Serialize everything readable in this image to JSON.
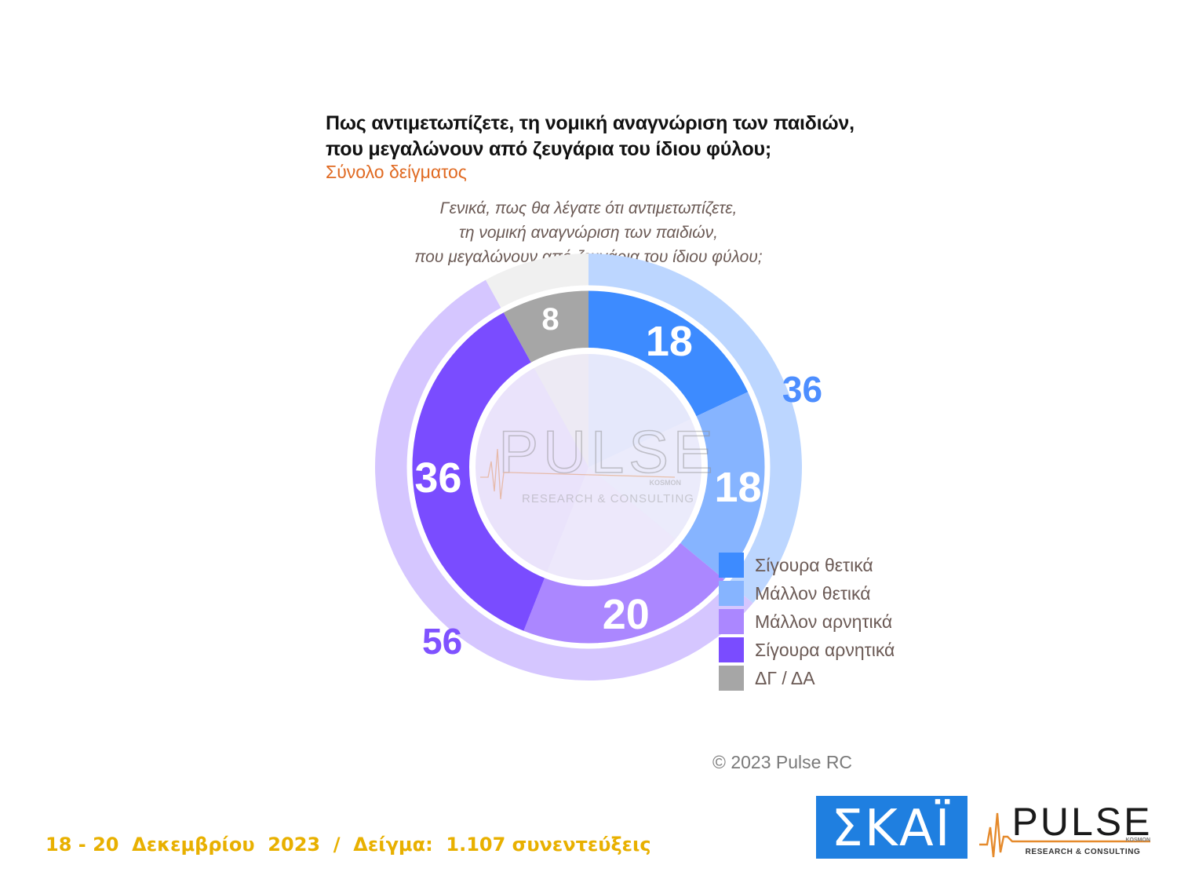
{
  "title_lines": [
    "Πως αντιμετωπίζετε, τη νομική αναγνώριση των παιδιών,",
    "που μεγαλώνουν από ζευγάρια του ίδιου φύλου;"
  ],
  "subtitle": "Σύνολο δείγματος",
  "question_lines": [
    "Γενικά, πως θα λέγατε ότι αντιμετωπίζετε,",
    "τη νομική αναγνώριση των παιδιών,",
    "που μεγαλώνουν από ζευγάρια του ίδιου φύλου;"
  ],
  "chart_data": {
    "type": "pie",
    "subtype": "donut",
    "categories": [
      "Σίγουρα θετικά",
      "Μάλλον θετικά",
      "Μάλλον αρνητικά",
      "Σίγουρα αρνητικά",
      "ΔΓ / ΔΑ"
    ],
    "values": [
      18,
      18,
      20,
      36,
      8
    ],
    "colors": [
      "#3d8bff",
      "#86b4ff",
      "#ab87ff",
      "#7a4cff",
      "#a6a6a6"
    ],
    "outer_ring": {
      "groups": [
        {
          "value": 36,
          "color": "#bcd6ff",
          "label_color": "#4d8eff"
        },
        {
          "value": 56,
          "color": "#d5c6ff",
          "label_color": "#7f52ff"
        },
        {
          "value": 8,
          "color": "#f0f0f0"
        }
      ]
    },
    "legend_position": "bottom-right"
  },
  "watermark": {
    "name": "PULSE",
    "sub": "KOSMON",
    "tagline": "RESEARCH & CONSULTING"
  },
  "copyright": "© 2023 Pulse RC",
  "footer": "18 - 20  Δεκεμβρίου  2023  /  Δείγμα:  1.107 συνεντεύξεις",
  "logos": {
    "skai": "ΣΚΑΪ",
    "pulse": {
      "name": "PULSE",
      "sub": "KOSMON",
      "tagline": "RESEARCH & CONSULTING"
    }
  }
}
